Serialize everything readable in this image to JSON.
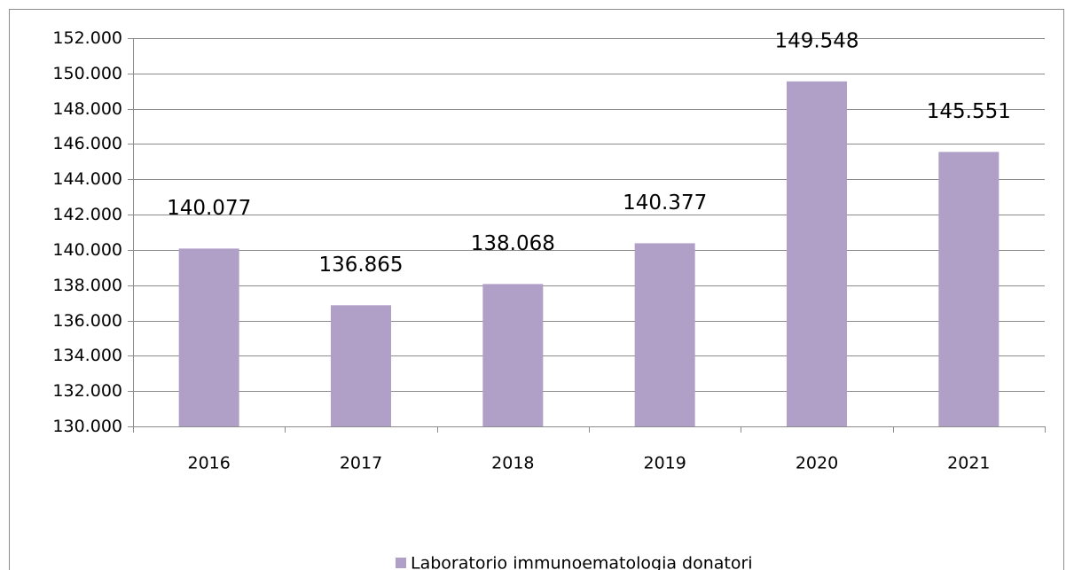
{
  "chart_data": {
    "type": "bar",
    "categories": [
      "2016",
      "2017",
      "2018",
      "2019",
      "2020",
      "2021"
    ],
    "series": [
      {
        "name": "Laboratorio immunoematologia donatori",
        "color": "#b0a0c8",
        "values": [
          140077,
          136865,
          138068,
          140377,
          149548,
          145551
        ],
        "value_labels": [
          "140.077",
          "136.865",
          "138.068",
          "140.377",
          "149.548",
          "145.551"
        ]
      }
    ],
    "ylim": [
      130000,
      152000
    ],
    "yticks": [
      {
        "value": 130000,
        "label": "130.000"
      },
      {
        "value": 132000,
        "label": "132.000"
      },
      {
        "value": 134000,
        "label": "134.000"
      },
      {
        "value": 136000,
        "label": "136.000"
      },
      {
        "value": 138000,
        "label": "138.000"
      },
      {
        "value": 140000,
        "label": "140.000"
      },
      {
        "value": 142000,
        "label": "142.000"
      },
      {
        "value": 144000,
        "label": "144.000"
      },
      {
        "value": 146000,
        "label": "146.000"
      },
      {
        "value": 148000,
        "label": "148.000"
      },
      {
        "value": 150000,
        "label": "150.000"
      },
      {
        "value": 152000,
        "label": "152.000"
      }
    ],
    "grid": true,
    "legend": "bottom"
  }
}
